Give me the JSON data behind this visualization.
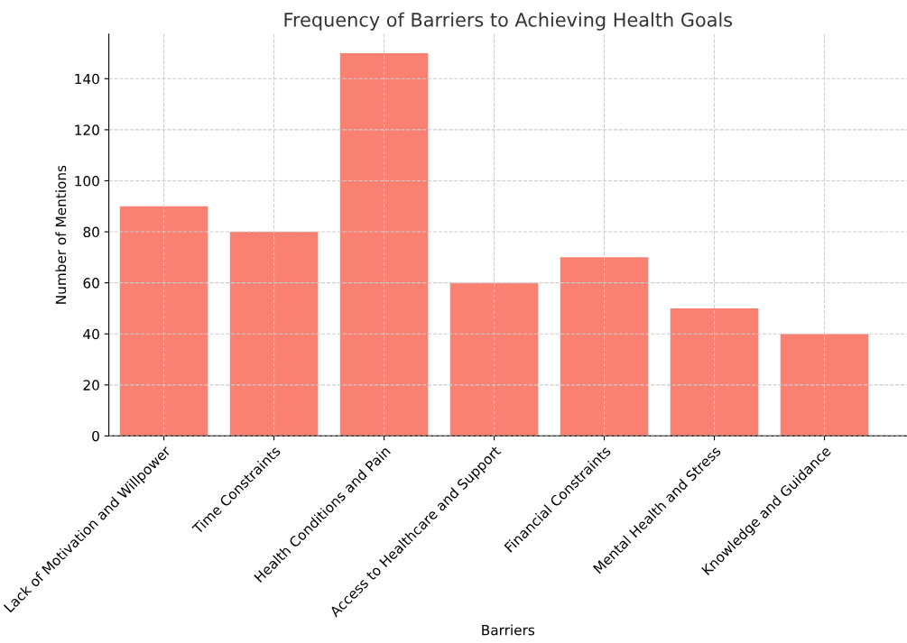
{
  "chart_data": {
    "type": "bar",
    "title": "Frequency of Barriers to Achieving Health Goals",
    "xlabel": "Barriers",
    "ylabel": "Number of Mentions",
    "categories": [
      "Lack of Motivation and Willpower",
      "Time Constraints",
      "Health Conditions and Pain",
      "Access to Healthcare and Support",
      "Financial Constraints",
      "Mental Health and Stress",
      "Knowledge and Guidance"
    ],
    "values": [
      90,
      80,
      150,
      60,
      70,
      50,
      40
    ],
    "color": "#fa8072",
    "ylim": [
      0,
      157.5
    ],
    "yticks": [
      0,
      20,
      40,
      60,
      80,
      100,
      120,
      140
    ],
    "grid": true
  }
}
